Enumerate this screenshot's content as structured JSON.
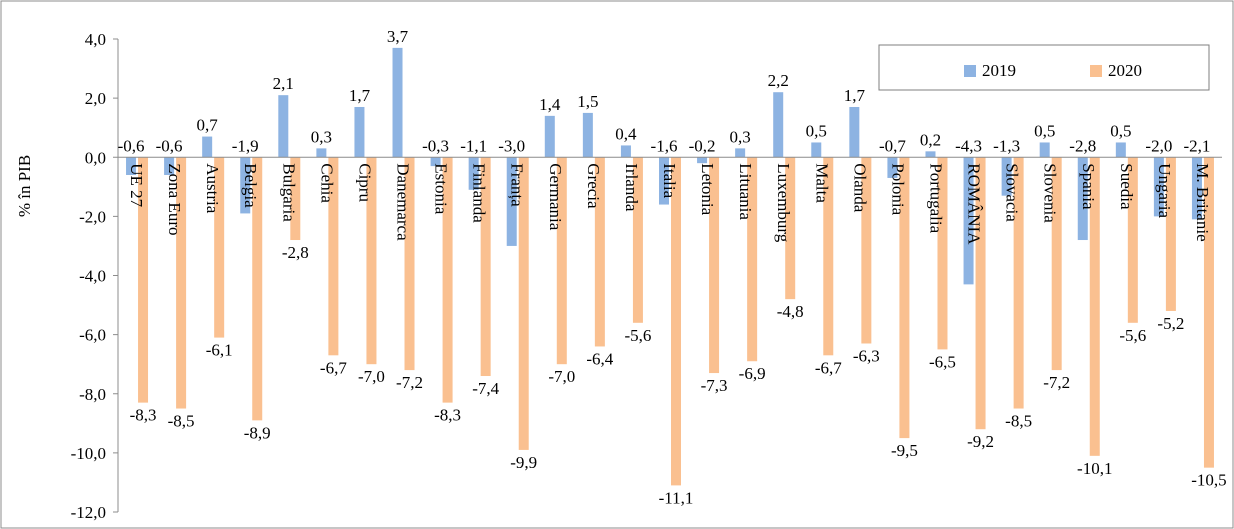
{
  "chart_data": {
    "type": "bar",
    "ylabel": "% în PIB",
    "ylim": [
      -12,
      4
    ],
    "ytick_step": 2,
    "grid": false,
    "legend_position": "top-right",
    "categories": [
      "UE 27",
      "Zona Euro",
      "Austria",
      "Belgia",
      "Bulgaria",
      "Cehia",
      "Cipru",
      "Danemarca",
      "Estonia",
      "Finlanda",
      "Franța",
      "Germania",
      "Grecia",
      "Irlanda",
      "Italia",
      "Letonia",
      "Lituania",
      "Luxemburg",
      "Malta",
      "Olanda",
      "Polonia",
      "Portugalia",
      "ROMÂNIA",
      "Slovacia",
      "Slovenia",
      "Spania",
      "Suedia",
      "Ungaria",
      "M. Britanie"
    ],
    "series": [
      {
        "name": "2019",
        "color": "#8DB3E2",
        "values": [
          -0.6,
          -0.6,
          0.7,
          -1.9,
          2.1,
          0.3,
          1.7,
          3.7,
          -0.3,
          -1.1,
          -3.0,
          1.4,
          1.5,
          0.4,
          -1.6,
          -0.2,
          0.3,
          2.2,
          0.5,
          1.7,
          -0.7,
          0.2,
          -4.3,
          -1.3,
          0.5,
          -2.8,
          0.5,
          -2.0,
          -2.1
        ],
        "labels": [
          "-0,6",
          "-0,6",
          "0,7",
          "-1,9",
          "2,1",
          "0,3",
          "1,7",
          "3,7",
          "-0,3",
          "-1,1",
          "-3,0",
          "1,4",
          "1,5",
          "0,4",
          "-1,6",
          "-0,2",
          "0,3",
          "2,2",
          "0,5",
          "1,7",
          "-0,7",
          "0,2",
          "-4,3",
          "-1,3",
          "0,5",
          "-2,8",
          "0,5",
          "-2,0",
          "-2,1"
        ]
      },
      {
        "name": "2020",
        "color": "#FAC090",
        "values": [
          -8.3,
          -8.5,
          -6.1,
          -8.9,
          -2.8,
          -6.7,
          -7.0,
          -7.2,
          -8.3,
          -7.4,
          -9.9,
          -7.0,
          -6.4,
          -5.6,
          -11.1,
          -7.3,
          -6.9,
          -4.8,
          -6.7,
          -6.3,
          -9.5,
          -6.5,
          -9.2,
          -8.5,
          -7.2,
          -10.1,
          -5.6,
          -5.2,
          -10.5
        ],
        "labels": [
          "-8,3",
          "-8,5",
          "-6,1",
          "-8,9",
          "-2,8",
          "-6,7",
          "-7,0",
          "-7,2",
          "-8,3",
          "-7,4",
          "-9,9",
          "-7,0",
          "-6,4",
          "-5,6",
          "-11,1",
          "-7,3",
          "-6,9",
          "-4,8",
          "-6,7",
          "-6,3",
          "-9,5",
          "-6,5",
          "-9,2",
          "-8,5",
          "-7,2",
          "-10,1",
          "-5,6",
          "-5,2",
          "-10,5"
        ]
      }
    ],
    "yticks": [
      {
        "value": 4,
        "label": "4,0"
      },
      {
        "value": 2,
        "label": "2,0"
      },
      {
        "value": 0,
        "label": "0,0"
      },
      {
        "value": -2,
        "label": "-2,0"
      },
      {
        "value": -4,
        "label": "-4,0"
      },
      {
        "value": -6,
        "label": "-6,0"
      },
      {
        "value": -8,
        "label": "-8,0"
      },
      {
        "value": -10,
        "label": "-10,0"
      },
      {
        "value": -12,
        "label": "-12,0"
      }
    ]
  }
}
